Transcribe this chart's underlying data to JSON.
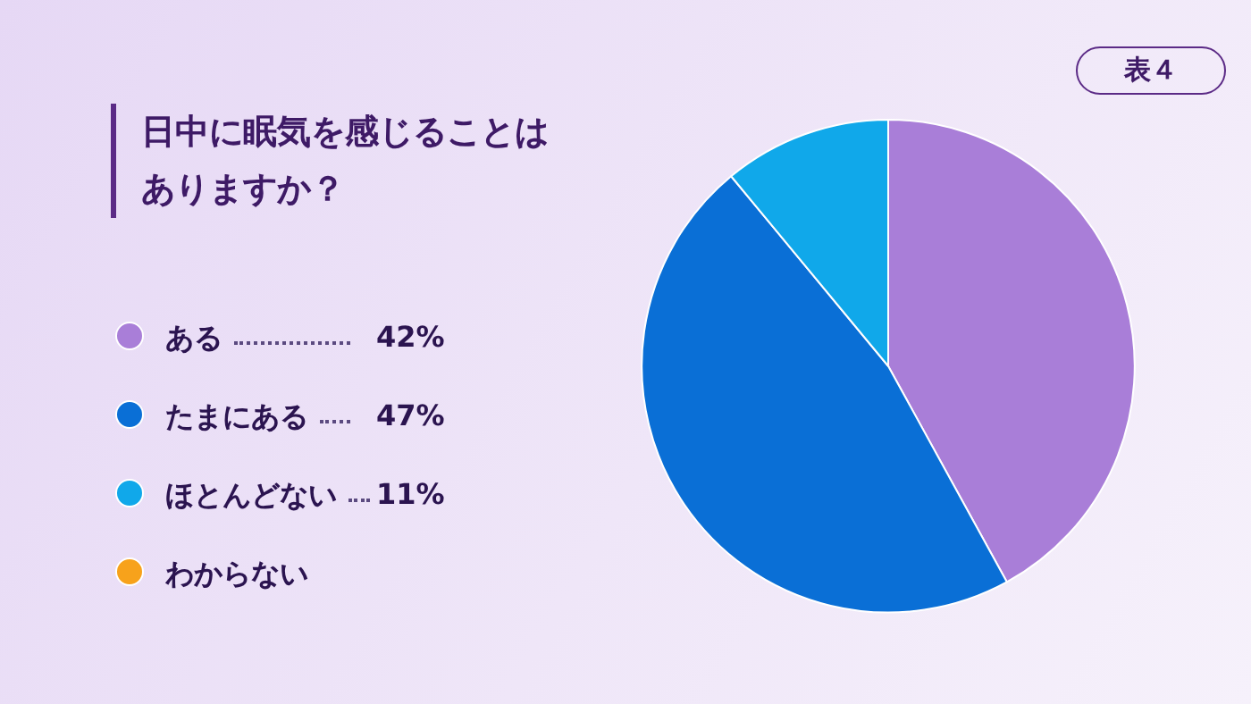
{
  "chart_data": {
    "type": "pie",
    "title": "日中に眠気を感じることはありますか？",
    "annotations": [
      "表４"
    ],
    "categories": [
      "ある",
      "たまにある",
      "ほとんどない",
      "わからない"
    ],
    "values": [
      42,
      47,
      11,
      0
    ],
    "colors": [
      "#a97ed8",
      "#0a6fd6",
      "#10a8ea",
      "#f7a21b"
    ],
    "value_labels": [
      "42%",
      "47%",
      "11%",
      null
    ],
    "legend": "left"
  }
}
